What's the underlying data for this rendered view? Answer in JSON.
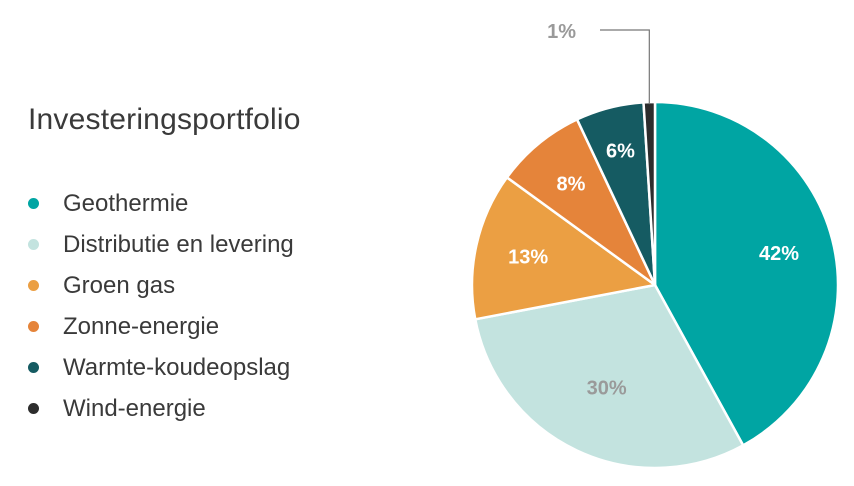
{
  "chart_data": {
    "type": "pie",
    "title": "Investeringsportfolio",
    "legend_position": "left",
    "slices": [
      {
        "name": "Geothermie",
        "value": 42,
        "label": "42%",
        "color": "#00a5a3",
        "label_color": "#ffffff"
      },
      {
        "name": "Distributie en levering",
        "value": 30,
        "label": "30%",
        "color": "#c3e3df",
        "label_color": "#9a9a9a"
      },
      {
        "name": "Groen gas",
        "value": 13,
        "label": "13%",
        "color": "#eb9f43",
        "label_color": "#ffffff"
      },
      {
        "name": "Zonne-energie",
        "value": 8,
        "label": "8%",
        "color": "#e5843a",
        "label_color": "#ffffff"
      },
      {
        "name": "Warmte-koudeopslag",
        "value": 6,
        "label": "6%",
        "color": "#155b62",
        "label_color": "#ffffff"
      },
      {
        "name": "Wind-energie",
        "value": 1,
        "label": "1%",
        "color": "#2d2d2d",
        "label_color": "#9a9a9a"
      }
    ]
  }
}
